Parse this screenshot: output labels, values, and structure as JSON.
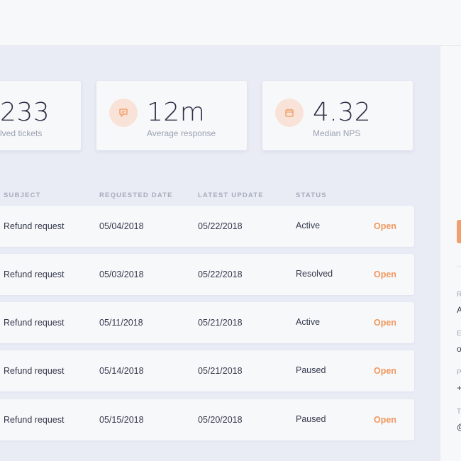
{
  "stats": [
    {
      "value": "233",
      "label": "lved tickets",
      "icon": "ticket-icon"
    },
    {
      "value": "12m",
      "label": "Average response",
      "icon": "chat-icon"
    },
    {
      "value": "4.32",
      "label": "Median NPS",
      "icon": "calendar-icon"
    }
  ],
  "accent_color": "#f0995e",
  "table": {
    "headers": [
      "SUBJECT",
      "REQUESTED DATE",
      "LATEST UPDATE",
      "STATUS"
    ],
    "rows": [
      {
        "subject": "Refund request",
        "requested": "05/04/2018",
        "updated": "05/22/2018",
        "status": "Active",
        "action": "Open"
      },
      {
        "subject": "Refund request",
        "requested": "05/03/2018",
        "updated": "05/22/2018",
        "status": "Resolved",
        "action": "Open"
      },
      {
        "subject": "Refund request",
        "requested": "05/11/2018",
        "updated": "05/21/2018",
        "status": "Active",
        "action": "Open"
      },
      {
        "subject": "Refund request",
        "requested": "05/14/2018",
        "updated": "05/21/2018",
        "status": "Paused",
        "action": "Open"
      },
      {
        "subject": "Refund request",
        "requested": "05/15/2018",
        "updated": "05/20/2018",
        "status": "Paused",
        "action": "Open"
      }
    ]
  },
  "right_panel": {
    "labels": [
      "R",
      "E",
      "P",
      "T"
    ],
    "values": [
      "A",
      "o",
      "+",
      "@"
    ]
  }
}
